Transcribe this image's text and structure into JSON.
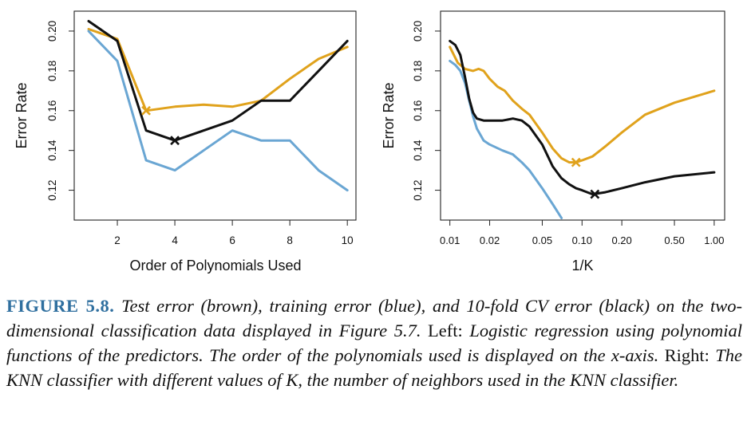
{
  "figure": {
    "label": "FIGURE 5.8.",
    "caption_segments": [
      {
        "text": " Test error (brown), training error (blue), and 10-fold CV error (black) on the two-dimensional classification data displayed in Figure 5.7.",
        "style": "it"
      },
      {
        "text": " Left:",
        "style": "rm"
      },
      {
        "text": " Logistic regression using polynomial functions of the predictors. The order of the polynomials used is displayed on the x-axis.",
        "style": "it"
      },
      {
        "text": " Right:",
        "style": "rm"
      },
      {
        "text": " The KNN classifier with different values of K, the number of neighbors used in the KNN classifier.",
        "style": "it"
      }
    ]
  },
  "chart_data": [
    {
      "type": "line",
      "xlabel": "Order of Polynomials Used",
      "ylabel": "Error Rate",
      "xlim": [
        0.5,
        10.3
      ],
      "ylim": [
        0.105,
        0.21
      ],
      "xticks": [
        2,
        4,
        6,
        8,
        10
      ],
      "xtick_labels": [
        "2",
        "4",
        "6",
        "8",
        "10"
      ],
      "yticks": [
        0.12,
        0.14,
        0.16,
        0.18,
        0.2
      ],
      "ytick_labels": [
        "0.12",
        "0.14",
        "0.16",
        "0.18",
        "0.20"
      ],
      "x_scale": "linear",
      "series": [
        {
          "color": "#e0a21c",
          "x": [
            1,
            2,
            3,
            4,
            5,
            6,
            7,
            8,
            9,
            10
          ],
          "y": [
            0.201,
            0.196,
            0.16,
            0.162,
            0.163,
            0.162,
            0.165,
            0.176,
            0.186,
            0.192
          ]
        },
        {
          "color": "#6aa6d3",
          "x": [
            1,
            2,
            3,
            4,
            5,
            6,
            7,
            8,
            9,
            10
          ],
          "y": [
            0.2,
            0.185,
            0.135,
            0.13,
            0.14,
            0.15,
            0.145,
            0.145,
            0.13,
            0.12
          ]
        },
        {
          "color": "#111111",
          "x": [
            1,
            2,
            3,
            4,
            5,
            6,
            7,
            8,
            9,
            10
          ],
          "y": [
            0.205,
            0.195,
            0.15,
            0.145,
            0.15,
            0.155,
            0.165,
            0.165,
            0.18,
            0.195
          ]
        }
      ],
      "markers": [
        {
          "x": 3,
          "y": 0.16,
          "color": "#e0a21c"
        },
        {
          "x": 4,
          "y": 0.145,
          "color": "#111111"
        }
      ]
    },
    {
      "type": "line",
      "xlabel": "1/K",
      "ylabel": "Error Rate",
      "xlim": [
        0.0085,
        1.2
      ],
      "ylim": [
        0.105,
        0.21
      ],
      "xticks": [
        0.01,
        0.02,
        0.05,
        0.1,
        0.2,
        0.5,
        1.0
      ],
      "xtick_labels": [
        "0.01",
        "0.02",
        "0.05",
        "0.10",
        "0.20",
        "0.50",
        "1.00"
      ],
      "yticks": [
        0.12,
        0.14,
        0.16,
        0.18,
        0.2
      ],
      "ytick_labels": [
        "0.12",
        "0.14",
        "0.16",
        "0.18",
        "0.20"
      ],
      "x_scale": "log",
      "series": [
        {
          "color": "#e0a21c",
          "x": [
            0.01,
            0.0115,
            0.013,
            0.015,
            0.0165,
            0.018,
            0.02,
            0.023,
            0.026,
            0.03,
            0.035,
            0.04,
            0.05,
            0.06,
            0.07,
            0.08,
            0.09,
            0.1,
            0.12,
            0.15,
            0.2,
            0.3,
            0.5,
            1.0
          ],
          "y": [
            0.192,
            0.184,
            0.181,
            0.18,
            0.181,
            0.18,
            0.176,
            0.172,
            0.17,
            0.165,
            0.161,
            0.158,
            0.149,
            0.141,
            0.136,
            0.134,
            0.134,
            0.135,
            0.137,
            0.142,
            0.149,
            0.158,
            0.164,
            0.17
          ]
        },
        {
          "color": "#6aa6d3",
          "x": [
            0.01,
            0.011,
            0.012,
            0.013,
            0.014,
            0.015,
            0.016,
            0.018,
            0.02,
            0.025,
            0.03,
            0.035,
            0.04,
            0.05,
            0.06,
            0.07
          ],
          "y": [
            0.185,
            0.183,
            0.18,
            0.174,
            0.165,
            0.157,
            0.151,
            0.145,
            0.143,
            0.14,
            0.138,
            0.134,
            0.13,
            0.121,
            0.113,
            0.106
          ]
        },
        {
          "color": "#111111",
          "x": [
            0.01,
            0.011,
            0.012,
            0.013,
            0.014,
            0.015,
            0.016,
            0.018,
            0.02,
            0.025,
            0.03,
            0.035,
            0.04,
            0.05,
            0.06,
            0.07,
            0.08,
            0.09,
            0.1,
            0.12,
            0.15,
            0.2,
            0.3,
            0.5,
            1.0
          ],
          "y": [
            0.195,
            0.193,
            0.188,
            0.177,
            0.166,
            0.159,
            0.156,
            0.155,
            0.155,
            0.155,
            0.156,
            0.155,
            0.152,
            0.143,
            0.132,
            0.126,
            0.123,
            0.121,
            0.12,
            0.118,
            0.119,
            0.121,
            0.124,
            0.127,
            0.129
          ]
        }
      ],
      "markers": [
        {
          "x": 0.09,
          "y": 0.134,
          "color": "#e0a21c"
        },
        {
          "x": 0.125,
          "y": 0.118,
          "color": "#111111"
        }
      ]
    }
  ]
}
